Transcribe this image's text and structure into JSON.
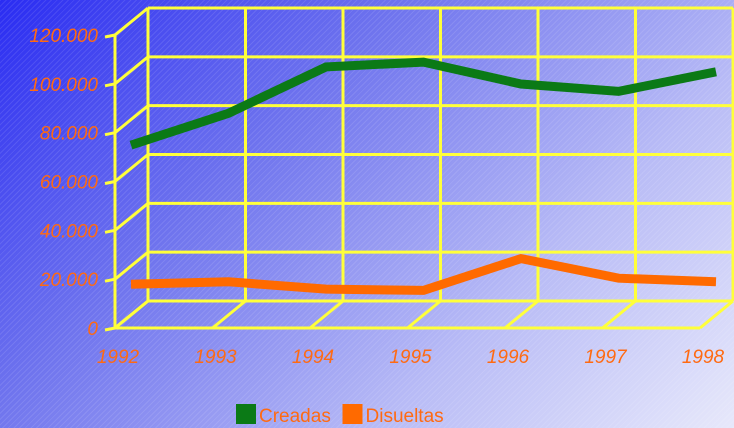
{
  "chart_data": {
    "type": "line",
    "categories": [
      "1992",
      "1993",
      "1994",
      "1995",
      "1996",
      "1997",
      "1998"
    ],
    "series": [
      {
        "name": "Creadas",
        "color": "#0b7a16",
        "values": [
          70000,
          83000,
          102000,
          104000,
          95000,
          92000,
          100000
        ]
      },
      {
        "name": "Disueltas",
        "color": "#ff6a00",
        "values": [
          13000,
          14000,
          11000,
          10500,
          23500,
          15500,
          14000
        ]
      }
    ],
    "y_ticks": [
      "0",
      "20.000",
      "40.000",
      "60.000",
      "80.000",
      "100.000",
      "120.000"
    ],
    "ylim": [
      0,
      120000
    ],
    "grid": true,
    "grid_color": "#ffff3a",
    "tick_label_color": "#ff6a12",
    "legend_position": "bottom",
    "title": "",
    "xlabel": "",
    "ylabel": ""
  }
}
